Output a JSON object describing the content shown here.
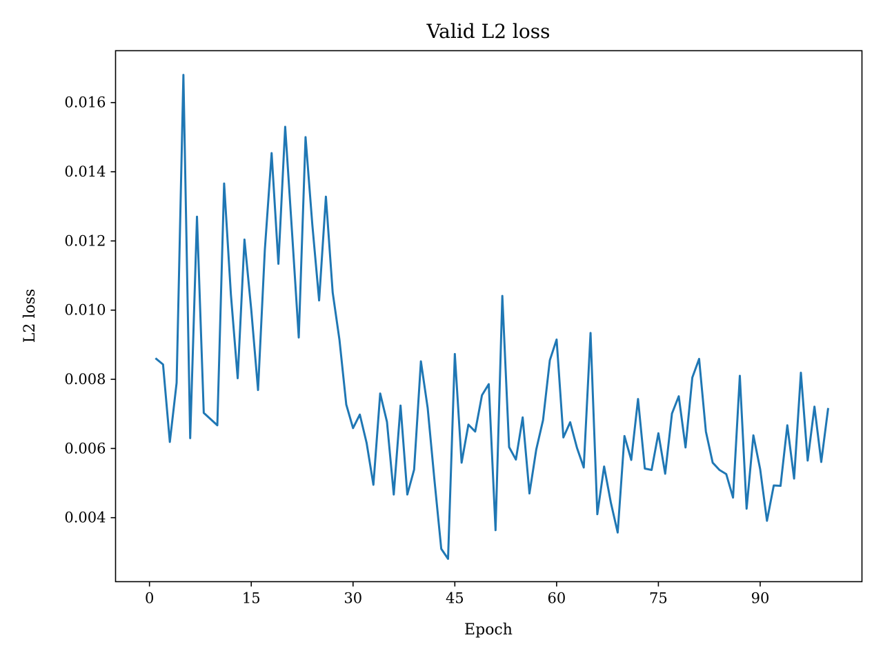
{
  "chart_data": {
    "type": "line",
    "title": "Valid L2 loss",
    "xlabel": "Epoch",
    "ylabel": "L2 loss",
    "xlim": [
      -5,
      105
    ],
    "ylim": [
      0.00215,
      0.0175
    ],
    "xticks": [
      0,
      15,
      30,
      45,
      60,
      75,
      90
    ],
    "xtick_labels": [
      "0",
      "15",
      "30",
      "45",
      "60",
      "75",
      "90"
    ],
    "yticks": [
      0.004,
      0.006,
      0.008,
      0.01,
      0.012,
      0.014,
      0.016
    ],
    "ytick_labels": [
      "0.004",
      "0.006",
      "0.008",
      "0.010",
      "0.012",
      "0.014",
      "0.016"
    ],
    "grid": false,
    "series": [
      {
        "color": "#1f77b4",
        "x": [
          1,
          2,
          3,
          4,
          5,
          6,
          7,
          8,
          9,
          10,
          11,
          12,
          13,
          14,
          15,
          16,
          17,
          18,
          19,
          20,
          21,
          22,
          23,
          24,
          25,
          26,
          27,
          28,
          29,
          30,
          31,
          32,
          33,
          34,
          35,
          36,
          37,
          38,
          39,
          40,
          41,
          42,
          43,
          44,
          45,
          46,
          47,
          48,
          49,
          50,
          51,
          52,
          53,
          54,
          55,
          56,
          57,
          58,
          59,
          60,
          61,
          62,
          63,
          64,
          65,
          66,
          67,
          68,
          69,
          70,
          71,
          72,
          73,
          74,
          75,
          76,
          77,
          78,
          79,
          80,
          81,
          82,
          83,
          84,
          85,
          86,
          87,
          88,
          89,
          90,
          91,
          92,
          93,
          94,
          95,
          96,
          97,
          98,
          99,
          100
        ],
        "y": [
          0.00859,
          0.00843,
          0.00619,
          0.0079,
          0.0168,
          0.0063,
          0.0127,
          0.00703,
          0.00685,
          0.00667,
          0.01366,
          0.01045,
          0.00803,
          0.01204,
          0.01001,
          0.00769,
          0.01174,
          0.01454,
          0.01134,
          0.0153,
          0.01228,
          0.00921,
          0.015,
          0.01247,
          0.01028,
          0.01328,
          0.01051,
          0.00914,
          0.00727,
          0.00659,
          0.00698,
          0.00616,
          0.00495,
          0.00759,
          0.00677,
          0.00467,
          0.00724,
          0.00467,
          0.00539,
          0.00852,
          0.00717,
          0.00508,
          0.0031,
          0.00281,
          0.00873,
          0.00559,
          0.00669,
          0.00649,
          0.00754,
          0.00786,
          0.00364,
          0.01041,
          0.00604,
          0.00568,
          0.0069,
          0.0047,
          0.00597,
          0.00682,
          0.00855,
          0.00915,
          0.00632,
          0.00676,
          0.00602,
          0.00545,
          0.00934,
          0.0041,
          0.00548,
          0.00443,
          0.00357,
          0.00636,
          0.00567,
          0.00743,
          0.00542,
          0.00538,
          0.00644,
          0.00527,
          0.00701,
          0.00751,
          0.00603,
          0.00805,
          0.00859,
          0.00649,
          0.00559,
          0.00538,
          0.00526,
          0.00458,
          0.0081,
          0.00426,
          0.00638,
          0.0054,
          0.00391,
          0.00493,
          0.00492,
          0.00667,
          0.00513,
          0.00819,
          0.00565,
          0.00721,
          0.00561,
          0.00714
        ]
      }
    ]
  }
}
